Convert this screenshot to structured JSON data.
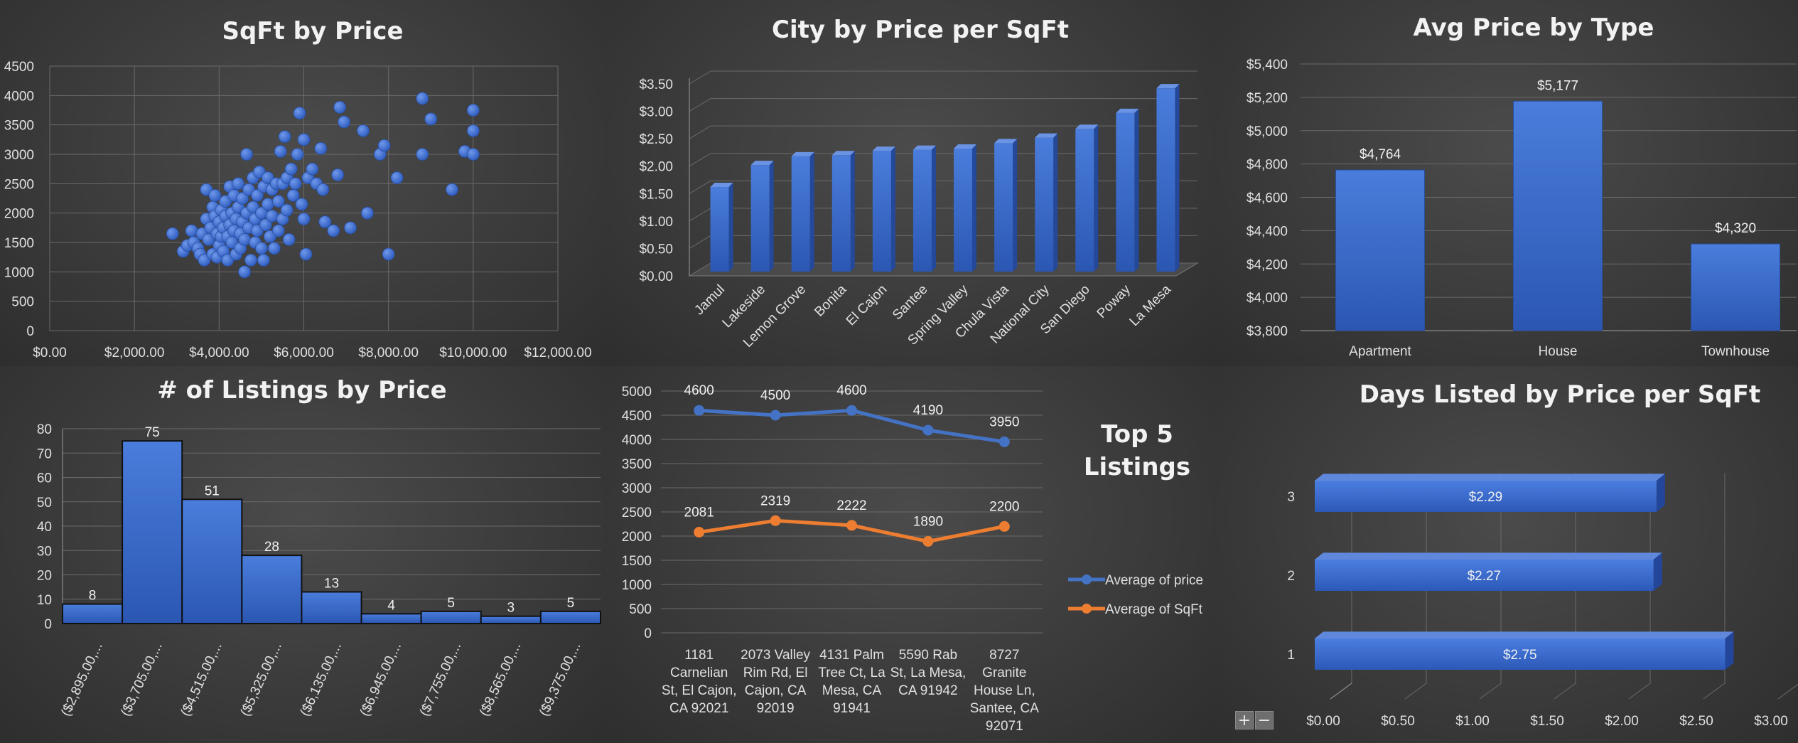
{
  "chart_data": [
    {
      "id": "scatter",
      "type": "scatter",
      "title": "SqFt by Price",
      "xlim": [
        0,
        12000
      ],
      "ylim": [
        0,
        4500
      ],
      "xticks": [
        "$0.00",
        "$2,000.00",
        "$4,000.00",
        "$6,000.00",
        "$8,000.00",
        "$10,000.00",
        "$12,000.00"
      ],
      "yticks": [
        "0",
        "500",
        "1000",
        "1500",
        "2000",
        "2500",
        "3000",
        "3500",
        "4000",
        "4500"
      ],
      "color": "#3f70d4",
      "points": [
        [
          2900,
          1650
        ],
        [
          3150,
          1350
        ],
        [
          3250,
          1450
        ],
        [
          3350,
          1700
        ],
        [
          3400,
          1500
        ],
        [
          3500,
          1400
        ],
        [
          3550,
          1300
        ],
        [
          3600,
          1650
        ],
        [
          3650,
          1200
        ],
        [
          3700,
          2400
        ],
        [
          3700,
          1900
        ],
        [
          3750,
          1550
        ],
        [
          3800,
          1750
        ],
        [
          3850,
          2100
        ],
        [
          3850,
          1300
        ],
        [
          3900,
          2300
        ],
        [
          3900,
          1950
        ],
        [
          3950,
          1650
        ],
        [
          3950,
          1250
        ],
        [
          4000,
          1850
        ],
        [
          4000,
          1450
        ],
        [
          4050,
          2050
        ],
        [
          4050,
          1600
        ],
        [
          4100,
          1350
        ],
        [
          4100,
          1750
        ],
        [
          4150,
          2200
        ],
        [
          4150,
          1950
        ],
        [
          4200,
          1600
        ],
        [
          4200,
          1200
        ],
        [
          4250,
          2450
        ],
        [
          4250,
          1800
        ],
        [
          4300,
          2000
        ],
        [
          4300,
          1500
        ],
        [
          4350,
          2300
        ],
        [
          4350,
          1700
        ],
        [
          4400,
          1300
        ],
        [
          4400,
          1900
        ],
        [
          4450,
          2500
        ],
        [
          4450,
          2100
        ],
        [
          4500,
          1650
        ],
        [
          4500,
          1400
        ],
        [
          4550,
          2250
        ],
        [
          4550,
          1850
        ],
        [
          4600,
          1000
        ],
        [
          4600,
          1550
        ],
        [
          4650,
          3000
        ],
        [
          4650,
          2000
        ],
        [
          4700,
          2400
        ],
        [
          4700,
          1750
        ],
        [
          4750,
          1200
        ],
        [
          4800,
          2600
        ],
        [
          4800,
          2100
        ],
        [
          4850,
          1900
        ],
        [
          4850,
          1500
        ],
        [
          4900,
          2300
        ],
        [
          4900,
          1700
        ],
        [
          4950,
          2700
        ],
        [
          5000,
          2000
        ],
        [
          5000,
          1400
        ],
        [
          5050,
          2450
        ],
        [
          5050,
          1200
        ],
        [
          5100,
          1800
        ],
        [
          5150,
          2600
        ],
        [
          5150,
          2150
        ],
        [
          5200,
          1600
        ],
        [
          5250,
          2400
        ],
        [
          5250,
          1950
        ],
        [
          5300,
          1400
        ],
        [
          5350,
          2500
        ],
        [
          5400,
          2200
        ],
        [
          5400,
          1700
        ],
        [
          5450,
          3050
        ],
        [
          5500,
          2500
        ],
        [
          5500,
          1900
        ],
        [
          5550,
          3300
        ],
        [
          5600,
          2600
        ],
        [
          5600,
          2050
        ],
        [
          5650,
          1550
        ],
        [
          5700,
          2750
        ],
        [
          5750,
          2300
        ],
        [
          5800,
          2500
        ],
        [
          5850,
          3000
        ],
        [
          5900,
          3700
        ],
        [
          5950,
          2150
        ],
        [
          6000,
          3250
        ],
        [
          6000,
          1900
        ],
        [
          6050,
          1300
        ],
        [
          6100,
          2600
        ],
        [
          6200,
          2750
        ],
        [
          6300,
          2500
        ],
        [
          6400,
          3100
        ],
        [
          6450,
          2400
        ],
        [
          6500,
          1850
        ],
        [
          6700,
          1700
        ],
        [
          6800,
          2650
        ],
        [
          6850,
          3800
        ],
        [
          6950,
          3550
        ],
        [
          7100,
          1750
        ],
        [
          7400,
          3400
        ],
        [
          7500,
          2000
        ],
        [
          7800,
          3000
        ],
        [
          7900,
          3150
        ],
        [
          8000,
          1300
        ],
        [
          8200,
          2600
        ],
        [
          8800,
          3950
        ],
        [
          8800,
          3000
        ],
        [
          9000,
          3600
        ],
        [
          9500,
          2400
        ],
        [
          9800,
          3050
        ],
        [
          10000,
          3750
        ],
        [
          10000,
          3400
        ],
        [
          10000,
          3000
        ]
      ]
    },
    {
      "id": "city",
      "type": "bar",
      "title": "City by Price per SqFt",
      "categories": [
        "Jamul",
        "Lakeside",
        "Lemon Grove",
        "Bonita",
        "El Cajon",
        "Santee",
        "Spring Valley",
        "Chula Vista",
        "National City",
        "San Diego",
        "Poway",
        "La Mesa"
      ],
      "values": [
        1.62,
        2.02,
        2.18,
        2.2,
        2.28,
        2.3,
        2.32,
        2.42,
        2.52,
        2.68,
        2.97,
        3.42
      ],
      "ylim": [
        0,
        3.5
      ],
      "yticks": [
        "$0.00",
        "$0.50",
        "$1.00",
        "$1.50",
        "$2.00",
        "$2.50",
        "$3.00",
        "$3.50"
      ],
      "color": "#3f70d4"
    },
    {
      "id": "type",
      "type": "bar",
      "title": "Avg Price by Type",
      "categories": [
        "Apartment",
        "House",
        "Townhouse"
      ],
      "values": [
        4764,
        5177,
        4320
      ],
      "data_labels": [
        "$4,764",
        "$5,177",
        "$4,320"
      ],
      "ylim": [
        3800,
        5400
      ],
      "yticks": [
        "$3,800",
        "$4,000",
        "$4,200",
        "$4,400",
        "$4,600",
        "$4,800",
        "$5,000",
        "$5,200",
        "$5,400"
      ],
      "color": "#3f70d4"
    },
    {
      "id": "hist",
      "type": "bar",
      "title": "# of Listings by Price",
      "categories": [
        "($2,895.00,...",
        "($3,705.00,...",
        "($4,515.00,...",
        "($5,325.00,...",
        "($6,135.00,...",
        "($6,945.00,...",
        "($7,755.00,...",
        "($8,565.00,...",
        "($9,375.00,..."
      ],
      "values": [
        8,
        75,
        51,
        28,
        13,
        4,
        5,
        3,
        5
      ],
      "ylim": [
        0,
        80
      ],
      "yticks": [
        "0",
        "10",
        "20",
        "30",
        "40",
        "50",
        "60",
        "70",
        "80"
      ],
      "color": "#3f70d4"
    },
    {
      "id": "top5",
      "type": "line",
      "title": "Top 5 Listings",
      "categories": [
        [
          "1181",
          "Carnelian",
          "St, El Cajon,",
          "CA 92021"
        ],
        [
          "2073 Valley",
          "Rim Rd, El",
          "Cajon, CA",
          "92019"
        ],
        [
          "4131 Palm",
          "Tree Ct, La",
          "Mesa, CA",
          "91941"
        ],
        [
          "5590 Rab",
          "St, La Mesa,",
          "CA 91942"
        ],
        [
          "8727",
          "Granite",
          "House Ln,",
          "Santee, CA",
          "92071"
        ]
      ],
      "series": [
        {
          "name": "Average of price",
          "values": [
            4600,
            4500,
            4600,
            4190,
            3950
          ],
          "color": "#4472c4"
        },
        {
          "name": "Average of SqFt",
          "values": [
            2081,
            2319,
            2222,
            1890,
            2200
          ],
          "color": "#ed7d31"
        }
      ],
      "ylim": [
        0,
        5000
      ],
      "yticks": [
        "0",
        "500",
        "1000",
        "1500",
        "2000",
        "2500",
        "3000",
        "3500",
        "4000",
        "4500",
        "5000"
      ],
      "legend": "right"
    },
    {
      "id": "days",
      "type": "bar",
      "orientation": "horizontal",
      "title": "Days Listed by Price per SqFt",
      "categories": [
        "1",
        "2",
        "3"
      ],
      "values": [
        2.75,
        2.27,
        2.29
      ],
      "data_labels": [
        "$2.75",
        "$2.27",
        "$2.29"
      ],
      "xlim": [
        0,
        3
      ],
      "xticks": [
        "$0.00",
        "$0.50",
        "$1.00",
        "$1.50",
        "$2.00",
        "$2.50",
        "$3.00"
      ],
      "color": "#3f70d4"
    }
  ],
  "controls": {
    "plus": "+",
    "minus": "−"
  }
}
